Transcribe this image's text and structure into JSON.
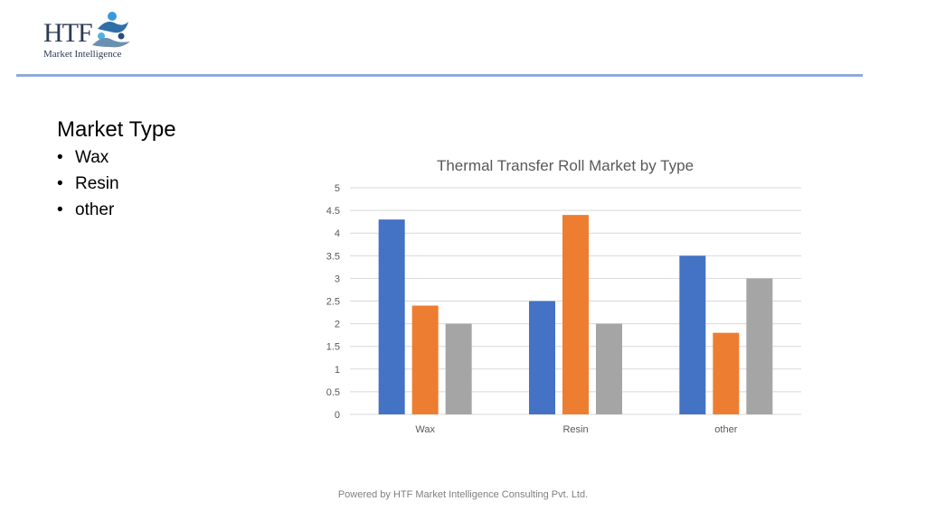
{
  "logo": {
    "htf": "HTF",
    "subtitle": "Market Intelligence",
    "icon": "htf-figures-logo-icon"
  },
  "slide": {
    "title": "Market Type",
    "bullets": [
      "Wax",
      "Resin",
      "other"
    ]
  },
  "footer": {
    "text": "Powered by HTF Market Intelligence Consulting Pvt. Ltd."
  },
  "colors": {
    "rule": "#8faadc",
    "series": [
      "#4472c4",
      "#ed7d31",
      "#a5a5a5"
    ],
    "grid": "#d9d9d9",
    "axis_text": "#595959"
  },
  "chart_data": {
    "type": "bar",
    "title": "Thermal Transfer Roll Market by Type",
    "categories": [
      "Wax",
      "Resin",
      "other"
    ],
    "series": [
      {
        "values": [
          4.3,
          2.5,
          3.5
        ]
      },
      {
        "values": [
          2.4,
          4.4,
          1.8
        ]
      },
      {
        "values": [
          2.0,
          2.0,
          3.0
        ]
      }
    ],
    "ylim": [
      0,
      5
    ],
    "yticks": [
      "0",
      "0.5",
      "1",
      "1.5",
      "2",
      "2.5",
      "3",
      "3.5",
      "4",
      "4.5",
      "5"
    ],
    "grid": true,
    "legend": "none",
    "xlabel": "",
    "ylabel": ""
  }
}
